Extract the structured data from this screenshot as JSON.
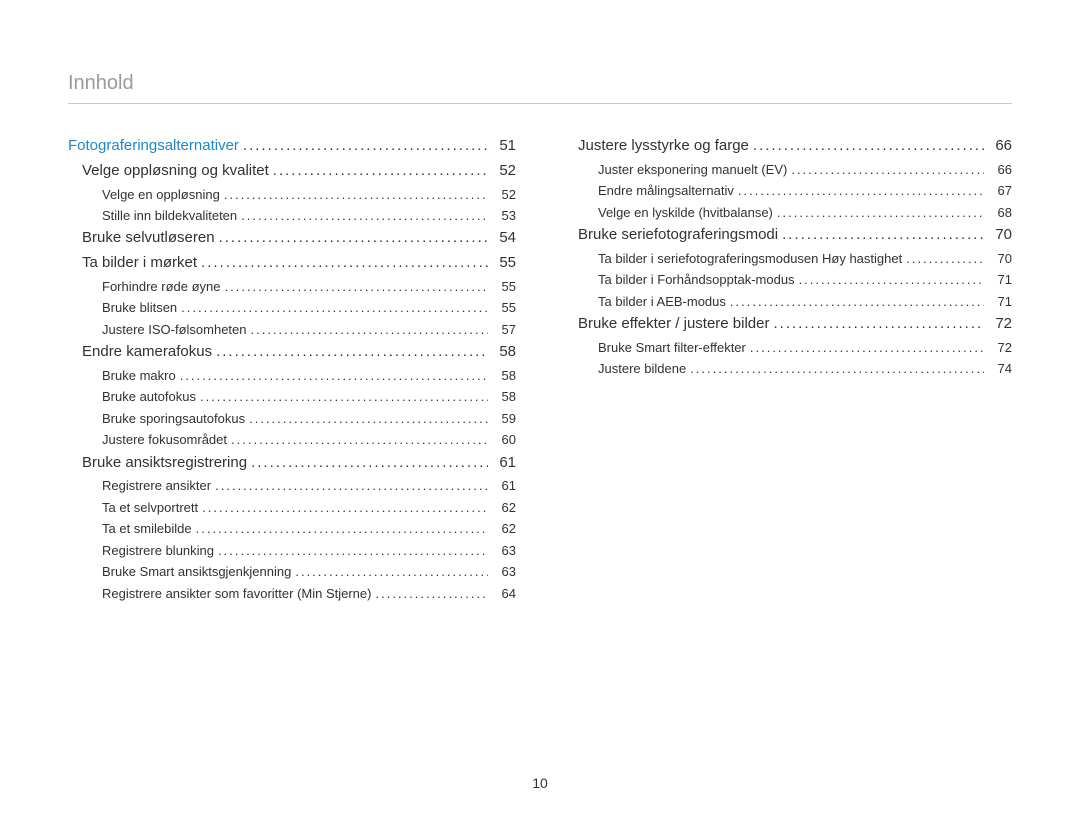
{
  "header": "Innhold",
  "page_number": "10",
  "colors": {
    "header_text": "#9a9a9a",
    "header_rule": "#c8c8c8",
    "section_link": "#1e88c7",
    "body_text": "#323232",
    "background": "#ffffff"
  },
  "typography": {
    "header_fontsize": 20,
    "level1_fontsize": 15,
    "level2_fontsize": 13,
    "footer_fontsize": 14
  },
  "columns": [
    {
      "entries": [
        {
          "level": "section",
          "label": "Fotograferingsalternativer",
          "page": "51"
        },
        {
          "level": 1,
          "label": "Velge oppløsning og kvalitet",
          "page": "52"
        },
        {
          "level": 2,
          "label": "Velge en oppløsning",
          "page": "52"
        },
        {
          "level": 2,
          "label": "Stille inn bildekvaliteten",
          "page": "53"
        },
        {
          "level": 1,
          "label": "Bruke selvutløseren",
          "page": "54"
        },
        {
          "level": 1,
          "label": "Ta bilder i mørket",
          "page": "55"
        },
        {
          "level": 2,
          "label": "Forhindre røde øyne",
          "page": "55"
        },
        {
          "level": 2,
          "label": "Bruke blitsen",
          "page": "55"
        },
        {
          "level": 2,
          "label": "Justere ISO-følsomheten",
          "page": "57"
        },
        {
          "level": 1,
          "label": "Endre kamerafokus",
          "page": "58"
        },
        {
          "level": 2,
          "label": "Bruke makro",
          "page": "58"
        },
        {
          "level": 2,
          "label": "Bruke autofokus",
          "page": "58"
        },
        {
          "level": 2,
          "label": "Bruke sporingsautofokus",
          "page": "59"
        },
        {
          "level": 2,
          "label": "Justere fokusområdet",
          "page": "60"
        },
        {
          "level": 1,
          "label": "Bruke ansiktsregistrering",
          "page": "61"
        },
        {
          "level": 2,
          "label": "Registrere ansikter",
          "page": "61"
        },
        {
          "level": 2,
          "label": "Ta et selvportrett",
          "page": "62"
        },
        {
          "level": 2,
          "label": "Ta et smilebilde",
          "page": "62"
        },
        {
          "level": 2,
          "label": "Registrere blunking",
          "page": "63"
        },
        {
          "level": 2,
          "label": "Bruke Smart ansiktsgjenkjenning",
          "page": "63"
        },
        {
          "level": 2,
          "label": "Registrere ansikter som favoritter (Min Stjerne)",
          "page": "64"
        }
      ]
    },
    {
      "entries": [
        {
          "level": 1,
          "label": "Justere lysstyrke og farge",
          "page": "66"
        },
        {
          "level": 2,
          "label": "Juster eksponering manuelt (EV)",
          "page": "66"
        },
        {
          "level": 2,
          "label": "Endre målingsalternativ",
          "page": "67"
        },
        {
          "level": 2,
          "label": "Velge en lyskilde (hvitbalanse)",
          "page": "68"
        },
        {
          "level": 1,
          "label": "Bruke seriefotograferingsmodi",
          "page": "70"
        },
        {
          "level": 2,
          "label": "Ta bilder i seriefotograferingsmodusen Høy hastighet",
          "page": "70"
        },
        {
          "level": 2,
          "label": "Ta bilder i Forhåndsopptak-modus",
          "page": "71"
        },
        {
          "level": 2,
          "label": "Ta bilder i AEB-modus",
          "page": "71"
        },
        {
          "level": 1,
          "label": "Bruke effekter / justere bilder",
          "page": "72"
        },
        {
          "level": 2,
          "label": "Bruke Smart filter-effekter",
          "page": "72"
        },
        {
          "level": 2,
          "label": "Justere bildene",
          "page": "74"
        }
      ]
    }
  ]
}
